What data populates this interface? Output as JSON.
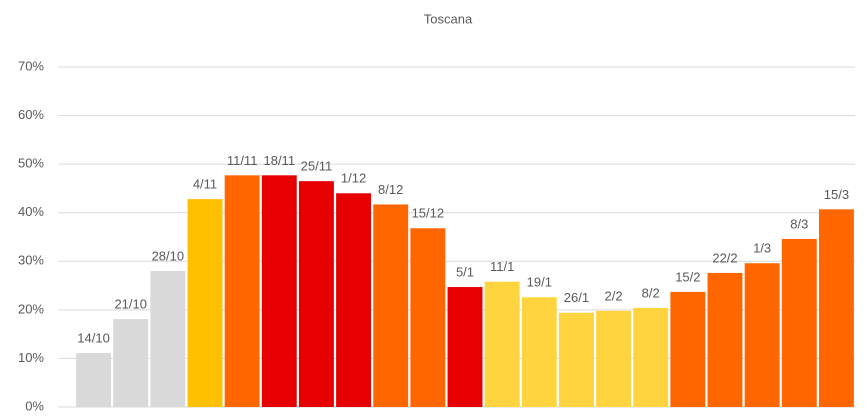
{
  "chart_data": {
    "type": "bar",
    "title": "Toscana",
    "categories": [
      "14/10",
      "21/10",
      "28/10",
      "4/11",
      "11/11",
      "18/11",
      "25/11",
      "1/12",
      "8/12",
      "15/12",
      "5/1",
      "11/1",
      "19/1",
      "26/1",
      "2/2",
      "8/2",
      "15/2",
      "22/2",
      "1/3",
      "8/3",
      "15/3"
    ],
    "values": [
      11.1,
      18.1,
      28,
      42.8,
      47.7,
      47.7,
      46.5,
      44,
      41.7,
      36.8,
      24.7,
      25.8,
      22.6,
      19.4,
      19.8,
      20.4,
      23.7,
      27.6,
      29.6,
      34.6,
      40.7
    ],
    "colors": [
      "#d9d9d9",
      "#d9d9d9",
      "#d9d9d9",
      "#ffc000",
      "#ff6600",
      "#e60000",
      "#e60000",
      "#e60000",
      "#ff6600",
      "#ff6600",
      "#e60000",
      "#ffd43f",
      "#ffd43f",
      "#ffd43f",
      "#ffd43f",
      "#ffd43f",
      "#ff6600",
      "#ff6600",
      "#ff6600",
      "#ff6600",
      "#ff6600"
    ],
    "ylim": [
      0,
      70
    ],
    "yticks": [
      {
        "value": 0,
        "label": "0%"
      },
      {
        "value": 10,
        "label": "10%"
      },
      {
        "value": 20,
        "label": "20%"
      },
      {
        "value": 30,
        "label": "30%"
      },
      {
        "value": 40,
        "label": "40%"
      },
      {
        "value": 50,
        "label": "50%"
      },
      {
        "value": 60,
        "label": "60%"
      },
      {
        "value": 70,
        "label": "70%"
      }
    ],
    "grid": true
  }
}
